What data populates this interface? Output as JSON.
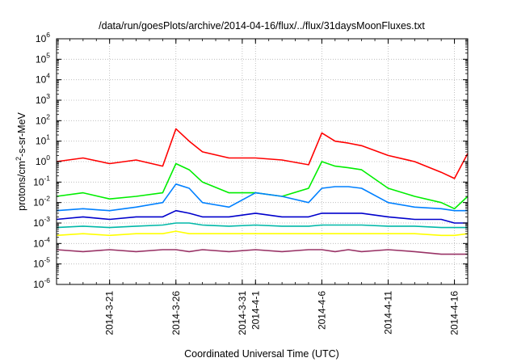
{
  "chart_data": {
    "type": "line",
    "title": "/data/run/goesPlots/archive/2014-04-16/flux/../flux/31daysMoonFluxes.txt",
    "xlabel": "Coordinated Universal Time (UTC)",
    "ylabel": "protons/cm2-s-sr-MeV",
    "ylabel_parts": {
      "base": "protons/cm",
      "sup": "2",
      "rest": "-s-sr-MeV"
    },
    "x_range": [
      "2014-03-17",
      "2014-04-17"
    ],
    "x_ticks": [
      {
        "date": "2014-03-21",
        "label": "2014-3-21"
      },
      {
        "date": "2014-03-26",
        "label": "2014-3-26"
      },
      {
        "date": "2014-03-31",
        "label": "2014-3-31"
      },
      {
        "date": "2014-04-01",
        "label": "2014-4-1"
      },
      {
        "date": "2014-04-06",
        "label": "2014-4-6"
      },
      {
        "date": "2014-04-11",
        "label": "2014-4-11"
      },
      {
        "date": "2014-04-16",
        "label": "2014-4-16"
      }
    ],
    "y_scale": "log",
    "ylim": [
      1e-06,
      1000000.0
    ],
    "y_ticks": [
      {
        "base": "10",
        "exp": "-6"
      },
      {
        "base": "10",
        "exp": "-5"
      },
      {
        "base": "10",
        "exp": "-4"
      },
      {
        "base": "10",
        "exp": "-3"
      },
      {
        "base": "10",
        "exp": "-2"
      },
      {
        "base": "10",
        "exp": "-1"
      },
      {
        "base": "10",
        "exp": "0"
      },
      {
        "base": "10",
        "exp": "1"
      },
      {
        "base": "10",
        "exp": "2"
      },
      {
        "base": "10",
        "exp": "3"
      },
      {
        "base": "10",
        "exp": "4"
      },
      {
        "base": "10",
        "exp": "5"
      },
      {
        "base": "10",
        "exp": "6"
      }
    ],
    "grid": true,
    "series": [
      {
        "color": "#ff0000",
        "x": [
          "2014-03-17",
          "2014-03-19",
          "2014-03-21",
          "2014-03-23",
          "2014-03-25",
          "2014-03-26",
          "2014-03-27",
          "2014-03-28",
          "2014-03-30",
          "2014-04-01",
          "2014-04-03",
          "2014-04-05",
          "2014-04-06",
          "2014-04-07",
          "2014-04-08",
          "2014-04-09",
          "2014-04-11",
          "2014-04-13",
          "2014-04-15",
          "2014-04-16",
          "2014-04-17"
        ],
        "y": [
          1.0,
          1.5,
          0.8,
          1.2,
          0.6,
          40,
          10,
          3,
          1.5,
          1.5,
          1.2,
          0.7,
          25,
          10,
          8,
          6,
          2,
          1.0,
          0.3,
          0.15,
          2.5
        ]
      },
      {
        "color": "#00ee00",
        "x": [
          "2014-03-17",
          "2014-03-19",
          "2014-03-21",
          "2014-03-23",
          "2014-03-25",
          "2014-03-26",
          "2014-03-27",
          "2014-03-28",
          "2014-03-30",
          "2014-04-01",
          "2014-04-03",
          "2014-04-05",
          "2014-04-06",
          "2014-04-07",
          "2014-04-08",
          "2014-04-09",
          "2014-04-11",
          "2014-04-13",
          "2014-04-15",
          "2014-04-16",
          "2014-04-17"
        ],
        "y": [
          0.02,
          0.03,
          0.015,
          0.02,
          0.03,
          0.8,
          0.4,
          0.1,
          0.03,
          0.03,
          0.02,
          0.05,
          1.0,
          0.6,
          0.5,
          0.4,
          0.05,
          0.02,
          0.01,
          0.005,
          0.02
        ]
      },
      {
        "color": "#0080ff",
        "x": [
          "2014-03-17",
          "2014-03-19",
          "2014-03-21",
          "2014-03-23",
          "2014-03-25",
          "2014-03-26",
          "2014-03-27",
          "2014-03-28",
          "2014-03-30",
          "2014-04-01",
          "2014-04-03",
          "2014-04-05",
          "2014-04-06",
          "2014-04-07",
          "2014-04-08",
          "2014-04-09",
          "2014-04-11",
          "2014-04-13",
          "2014-04-15",
          "2014-04-16",
          "2014-04-17"
        ],
        "y": [
          0.004,
          0.005,
          0.004,
          0.006,
          0.01,
          0.08,
          0.05,
          0.01,
          0.006,
          0.03,
          0.02,
          0.01,
          0.05,
          0.06,
          0.06,
          0.05,
          0.01,
          0.006,
          0.005,
          0.004,
          0.004
        ]
      },
      {
        "color": "#0000cc",
        "x": [
          "2014-03-17",
          "2014-03-19",
          "2014-03-21",
          "2014-03-23",
          "2014-03-25",
          "2014-03-26",
          "2014-03-27",
          "2014-03-28",
          "2014-03-30",
          "2014-04-01",
          "2014-04-03",
          "2014-04-05",
          "2014-04-06",
          "2014-04-07",
          "2014-04-08",
          "2014-04-09",
          "2014-04-11",
          "2014-04-13",
          "2014-04-15",
          "2014-04-16",
          "2014-04-17"
        ],
        "y": [
          0.0015,
          0.002,
          0.0015,
          0.002,
          0.002,
          0.004,
          0.003,
          0.002,
          0.002,
          0.003,
          0.002,
          0.002,
          0.003,
          0.003,
          0.003,
          0.003,
          0.002,
          0.0015,
          0.0015,
          0.001,
          0.001
        ]
      },
      {
        "color": "#00b8a8",
        "x": [
          "2014-03-17",
          "2014-03-19",
          "2014-03-21",
          "2014-03-23",
          "2014-03-25",
          "2014-03-26",
          "2014-03-27",
          "2014-03-28",
          "2014-03-30",
          "2014-04-01",
          "2014-04-03",
          "2014-04-05",
          "2014-04-06",
          "2014-04-07",
          "2014-04-08",
          "2014-04-09",
          "2014-04-11",
          "2014-04-13",
          "2014-04-15",
          "2014-04-16",
          "2014-04-17"
        ],
        "y": [
          0.0006,
          0.0007,
          0.0006,
          0.0007,
          0.0008,
          0.001,
          0.001,
          0.0008,
          0.0007,
          0.0008,
          0.0007,
          0.0007,
          0.0008,
          0.0008,
          0.0008,
          0.0008,
          0.0007,
          0.0007,
          0.0006,
          0.0006,
          0.0006
        ]
      },
      {
        "color": "#ffff00",
        "x": [
          "2014-03-17",
          "2014-03-19",
          "2014-03-21",
          "2014-03-23",
          "2014-03-25",
          "2014-03-26",
          "2014-03-27",
          "2014-03-28",
          "2014-03-30",
          "2014-04-01",
          "2014-04-03",
          "2014-04-05",
          "2014-04-06",
          "2014-04-07",
          "2014-04-08",
          "2014-04-09",
          "2014-04-11",
          "2014-04-13",
          "2014-04-15",
          "2014-04-16",
          "2014-04-17"
        ],
        "y": [
          0.00025,
          0.0003,
          0.00025,
          0.0003,
          0.0003,
          0.0004,
          0.0003,
          0.0003,
          0.0003,
          0.0003,
          0.0003,
          0.0003,
          0.0003,
          0.0003,
          0.0003,
          0.0003,
          0.0003,
          0.0003,
          0.00025,
          0.00025,
          0.0003
        ]
      },
      {
        "color": "#993366",
        "x": [
          "2014-03-17",
          "2014-03-19",
          "2014-03-21",
          "2014-03-23",
          "2014-03-25",
          "2014-03-26",
          "2014-03-27",
          "2014-03-28",
          "2014-03-30",
          "2014-04-01",
          "2014-04-03",
          "2014-04-05",
          "2014-04-06",
          "2014-04-07",
          "2014-04-08",
          "2014-04-09",
          "2014-04-11",
          "2014-04-13",
          "2014-04-15",
          "2014-04-16",
          "2014-04-17"
        ],
        "y": [
          5e-05,
          4e-05,
          5e-05,
          4e-05,
          5e-05,
          5e-05,
          4e-05,
          5e-05,
          4e-05,
          5e-05,
          4e-05,
          5e-05,
          5e-05,
          4e-05,
          5e-05,
          4e-05,
          5e-05,
          4e-05,
          3e-05,
          3e-05,
          3e-05
        ]
      }
    ]
  }
}
